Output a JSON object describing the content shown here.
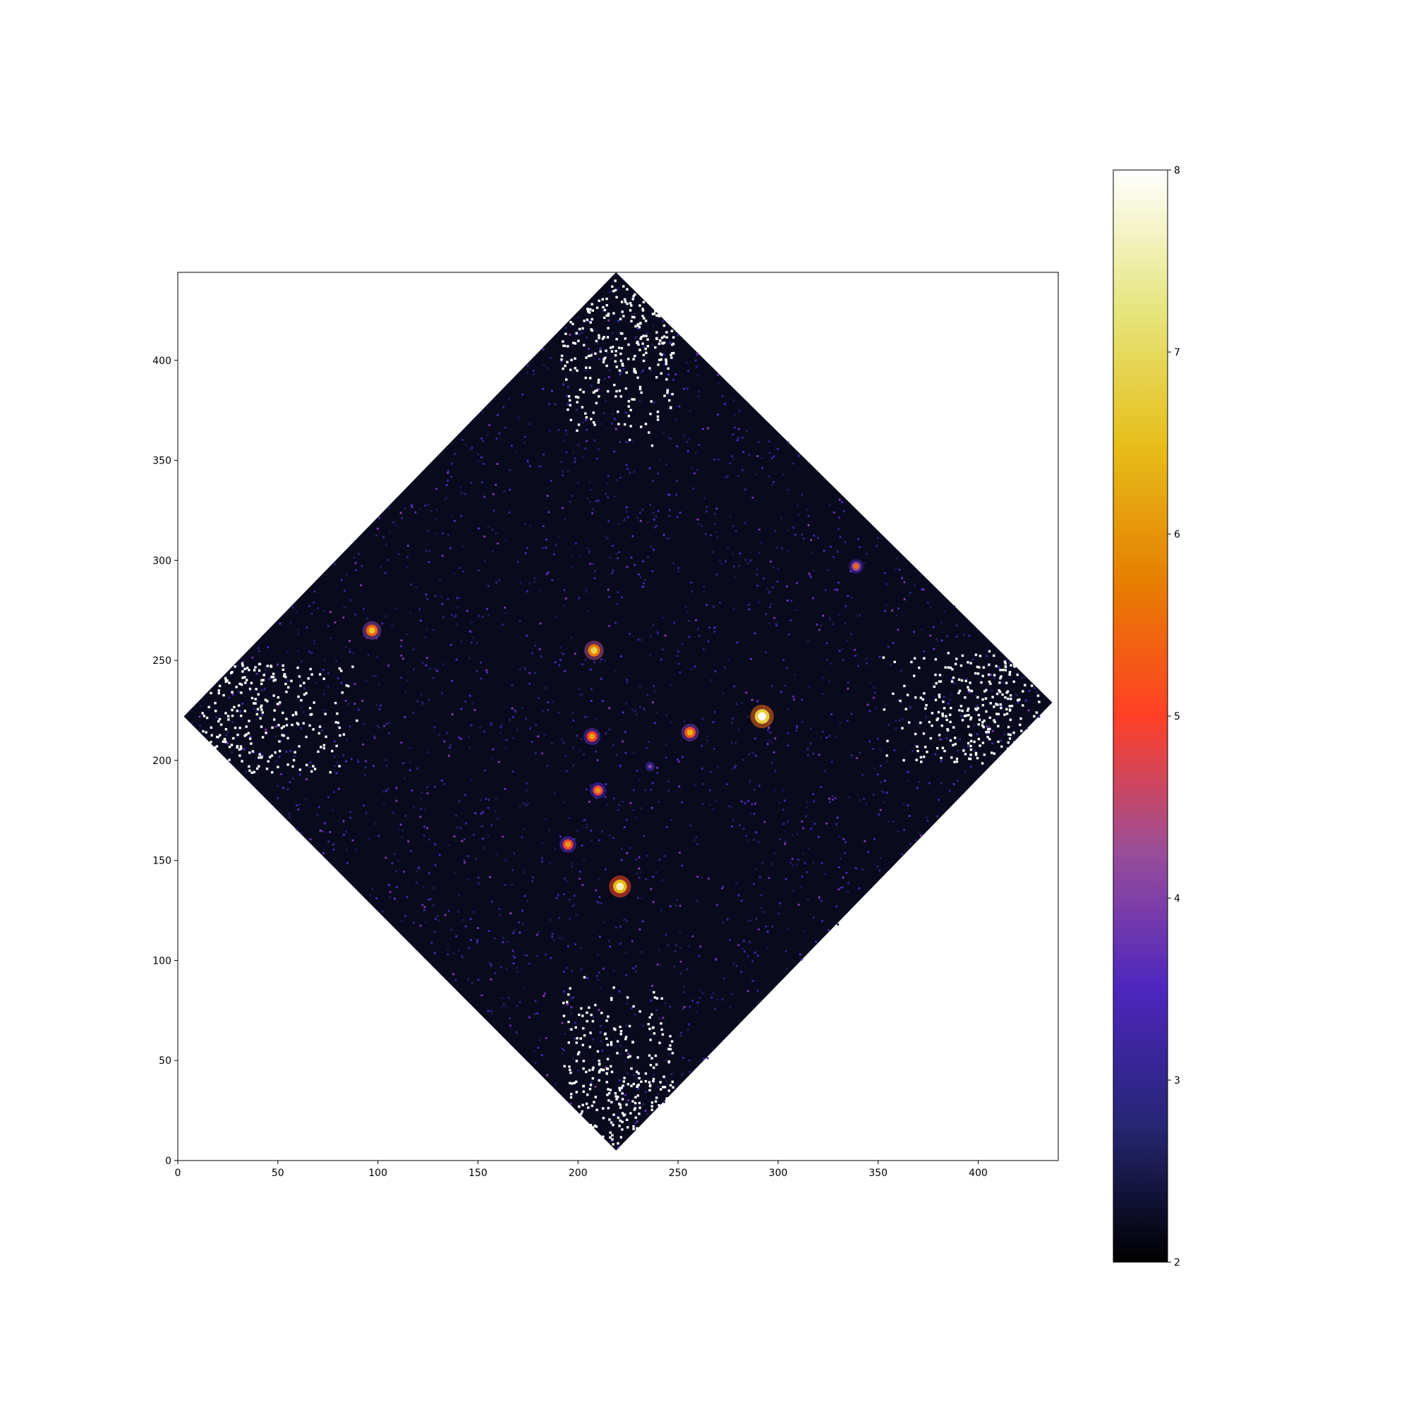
{
  "chart_data": {
    "type": "heatmap",
    "title": "",
    "xlabel": "",
    "ylabel": "",
    "xlim": [
      0,
      440
    ],
    "ylim": [
      0,
      444
    ],
    "x_ticks": [
      0,
      50,
      100,
      150,
      200,
      250,
      300,
      350,
      400
    ],
    "y_ticks": [
      0,
      50,
      100,
      150,
      200,
      250,
      300,
      350,
      400
    ],
    "grid": false,
    "colormap": "CMRmap",
    "colorbar": {
      "vmin": 2,
      "vmax": 8,
      "ticks": [
        2,
        3,
        4,
        5,
        6,
        7,
        8
      ],
      "stops": [
        "#000000",
        "#262673",
        "#4d26bf",
        "#994d99",
        "#ff4026",
        "#e67f00",
        "#e6bf1a",
        "#e6e680",
        "#ffffff"
      ]
    },
    "footprint": {
      "shape": "diamond",
      "vertices": [
        [
          219,
          444
        ],
        [
          437,
          229
        ],
        [
          219,
          5
        ],
        [
          3,
          222
        ]
      ],
      "background_value": 2.2,
      "outside": "no data (white)"
    },
    "sources": [
      {
        "x": 292,
        "y": 222,
        "value": 8
      },
      {
        "x": 221,
        "y": 137,
        "value": 7.6
      },
      {
        "x": 97,
        "y": 265,
        "value": 6.6
      },
      {
        "x": 208,
        "y": 255,
        "value": 6.9
      },
      {
        "x": 207,
        "y": 212,
        "value": 6.2
      },
      {
        "x": 256,
        "y": 214,
        "value": 6.4
      },
      {
        "x": 210,
        "y": 185,
        "value": 6.0
      },
      {
        "x": 195,
        "y": 158,
        "value": 6.1
      },
      {
        "x": 236,
        "y": 197,
        "value": 4.2
      },
      {
        "x": 339,
        "y": 297,
        "value": 5.5
      }
    ]
  }
}
